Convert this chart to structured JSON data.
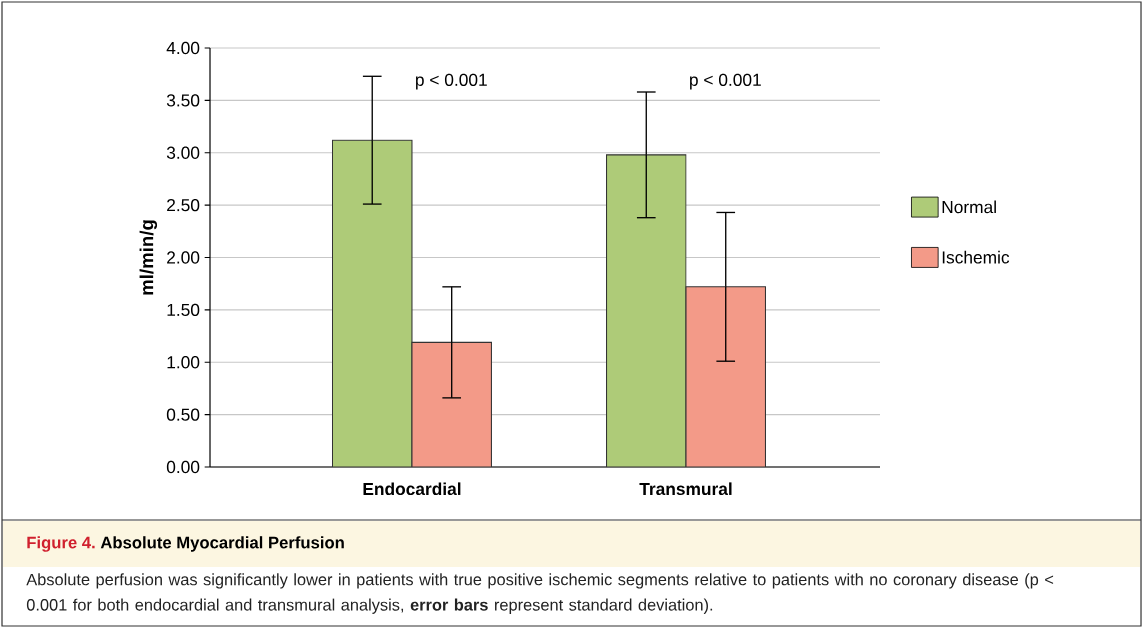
{
  "chart_data": {
    "type": "bar",
    "title": "Figure 4.",
    "subtitle": "Absolute Myocardial Perfusion",
    "ylabel": "ml/min/g",
    "categories": [
      "Endocardial",
      "Transmural"
    ],
    "series": [
      {
        "name": "Normal",
        "color": "#aecb78",
        "values": [
          3.12,
          2.98
        ],
        "errors": [
          0.61,
          0.6
        ]
      },
      {
        "name": "Ischemic",
        "color": "#f39a88",
        "values": [
          1.19,
          1.72
        ],
        "errors": [
          0.53,
          0.71
        ]
      }
    ],
    "ylim": [
      0,
      4
    ],
    "yticks": [
      {
        "value": 0,
        "label": "0.00"
      },
      {
        "value": 0.5,
        "label": "0.50"
      },
      {
        "value": 1,
        "label": "1.00"
      },
      {
        "value": 1.5,
        "label": "1.50"
      },
      {
        "value": 2,
        "label": "2.00"
      },
      {
        "value": 2.5,
        "label": "2.50"
      },
      {
        "value": 3,
        "label": "3.00"
      },
      {
        "value": 3.5,
        "label": "3.50"
      },
      {
        "value": 4,
        "label": "4.00"
      }
    ],
    "grid": "y",
    "legend": "right",
    "annotations": [
      "p < 0.001",
      "p < 0.001",
      "Absolute perfusion was significantly lower in patients with true positive ischemic segments relative to patients with no coronary disease (p < 0.001 for both endocardial and transmural analysis, **error bars** represent standard deviation)."
    ]
  }
}
